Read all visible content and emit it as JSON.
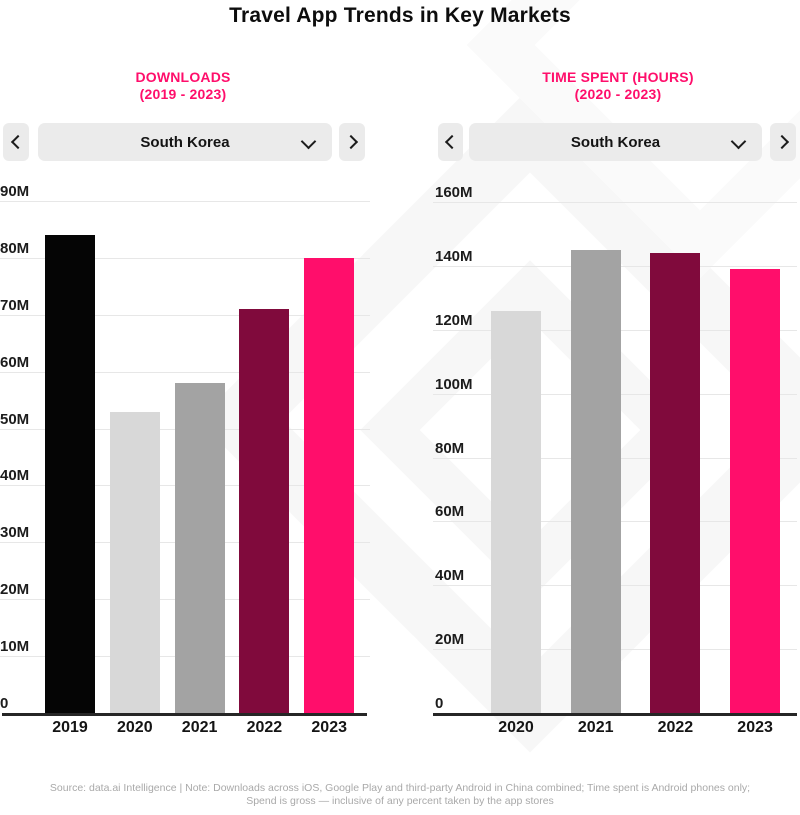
{
  "title": "Travel App Trends in Key Markets",
  "panels": [
    {
      "heading_line1": "DOWNLOADS",
      "heading_line2": "(2019 - 2023)",
      "selector": {
        "value": "South Korea",
        "prev_icon": "chevron-left",
        "next_icon": "chevron-right",
        "dropdown_icon": "chevron-down"
      }
    },
    {
      "heading_line1": "TIME SPENT (HOURS)",
      "heading_line2": "(2020 - 2023)",
      "selector": {
        "value": "South Korea",
        "prev_icon": "chevron-left",
        "next_icon": "chevron-right",
        "dropdown_icon": "chevron-down"
      }
    }
  ],
  "chart_data": [
    {
      "type": "bar",
      "title": "Downloads (2019 - 2023) - South Korea",
      "categories": [
        "2019",
        "2020",
        "2021",
        "2022",
        "2023"
      ],
      "values": [
        84,
        53,
        58,
        71,
        80
      ],
      "unit": "millions",
      "ylim": [
        0,
        90
      ],
      "ytick_step": 10,
      "ytick_labels": [
        "90M",
        "80M",
        "70M",
        "60M",
        "50M",
        "40M",
        "30M",
        "20M",
        "10M",
        "0"
      ],
      "bar_colors": [
        "#050505",
        "#d8d8d8",
        "#a3a3a3",
        "#800a3c",
        "#ff0e6b"
      ],
      "grid": true,
      "legend": false
    },
    {
      "type": "bar",
      "title": "Time Spent in Hours (2020 - 2023) - South Korea",
      "categories": [
        "2020",
        "2021",
        "2022",
        "2023"
      ],
      "values": [
        126,
        145,
        144,
        139
      ],
      "unit": "millions",
      "ylim": [
        0,
        160
      ],
      "ytick_step": 20,
      "ytick_labels": [
        "160M",
        "140M",
        "120M",
        "100M",
        "80M",
        "60M",
        "40M",
        "20M",
        "0"
      ],
      "bar_colors": [
        "#d8d8d8",
        "#a3a3a3",
        "#800a3c",
        "#ff0e6b"
      ],
      "grid": true,
      "legend": false
    }
  ],
  "colors": {
    "accent_pink": "#ff0e6b",
    "maroon": "#800a3c",
    "black_bar": "#050505",
    "light_gray_bar": "#d8d8d8",
    "mid_gray_bar": "#a3a3a3",
    "control_background": "#ebebeb",
    "gridline": "#e7e7e7",
    "axis": "#262626",
    "footer_text": "#a9a9a9",
    "watermark": "#f7f7f7"
  },
  "footer": {
    "line1": "Source: data.ai Intelligence | Note: Downloads across iOS, Google Play and third-party Android in China combined; Time spent is Android phones only;",
    "line2": "Spend is gross — inclusive of any percent taken by the app stores"
  }
}
